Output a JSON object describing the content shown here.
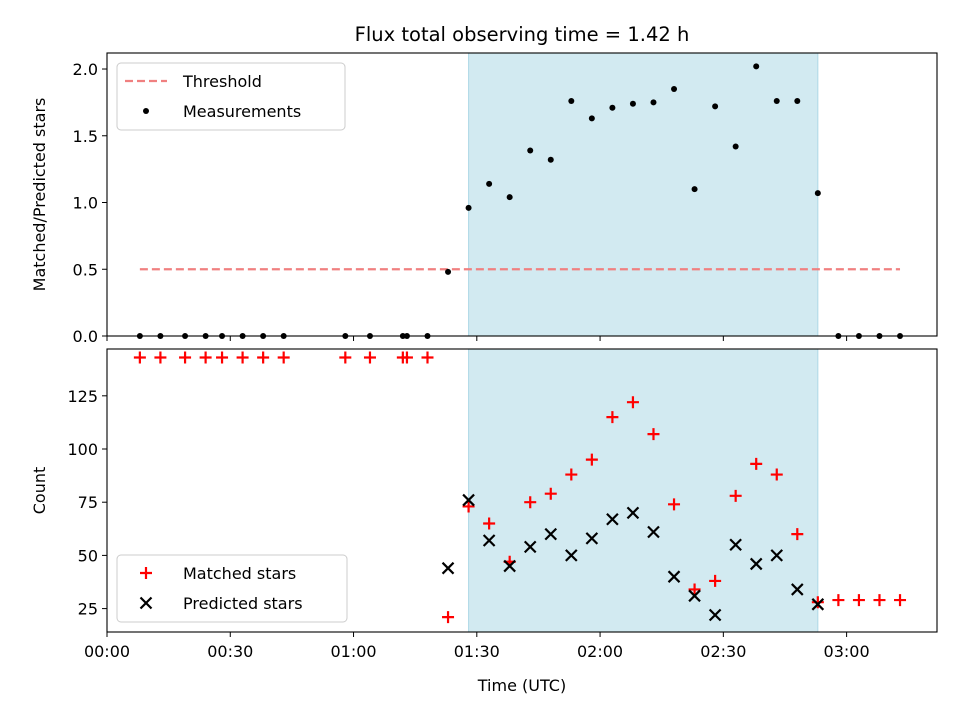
{
  "title": "Flux total observing time = 1.42 h",
  "colors": {
    "threshold": "#f08080",
    "measurement": "#000000",
    "matched": "#ff0000",
    "predicted": "#000000",
    "span": "#add8e6"
  },
  "chart_data": [
    {
      "type": "scatter",
      "title": "Flux total observing time = 1.42 h",
      "xlabel": "",
      "ylabel": "Matched/Predicted stars",
      "xlim": [
        "00:00",
        "03:22"
      ],
      "ylim": [
        0,
        2.12
      ],
      "yticks": [
        "0.0",
        "0.5",
        "1.0",
        "1.5",
        "2.0"
      ],
      "grid": false,
      "legend": "upper left",
      "shaded_span": [
        "01:28",
        "02:53"
      ],
      "series": [
        {
          "name": "Threshold",
          "style": "dashed-line",
          "x": [
            "00:08",
            "03:13"
          ],
          "y": [
            0.5,
            0.5
          ]
        },
        {
          "name": "Measurements",
          "style": "dot",
          "x": [
            "00:08",
            "00:13",
            "00:19",
            "00:24",
            "00:28",
            "00:33",
            "00:38",
            "00:43",
            "00:58",
            "01:04",
            "01:12",
            "01:13",
            "01:18",
            "01:23",
            "01:28",
            "01:33",
            "01:38",
            "01:43",
            "01:48",
            "01:53",
            "01:58",
            "02:03",
            "02:08",
            "02:13",
            "02:18",
            "02:23",
            "02:28",
            "02:33",
            "02:38",
            "02:43",
            "02:48",
            "02:53",
            "02:58",
            "03:03",
            "03:08",
            "03:13"
          ],
          "y": [
            0,
            0,
            0,
            0,
            0,
            0,
            0,
            0,
            0,
            0,
            0,
            0,
            0,
            0.48,
            0.96,
            1.14,
            1.04,
            1.39,
            1.32,
            1.76,
            1.63,
            1.71,
            1.74,
            1.75,
            1.85,
            1.1,
            1.72,
            1.42,
            2.02,
            1.76,
            1.76,
            1.07,
            0,
            0,
            0,
            0
          ]
        }
      ]
    },
    {
      "type": "scatter",
      "title": "",
      "xlabel": "Time (UTC)",
      "ylabel": "Count",
      "xlim": [
        "00:00",
        "03:22"
      ],
      "ylim": [
        14,
        147
      ],
      "xticks": [
        "00:00",
        "00:30",
        "01:00",
        "01:30",
        "02:00",
        "02:30",
        "03:00"
      ],
      "yticks": [
        "25",
        "50",
        "75",
        "100",
        "125"
      ],
      "grid": false,
      "legend": "lower left",
      "shaded_span": [
        "01:28",
        "02:53"
      ],
      "series": [
        {
          "name": "Matched stars",
          "marker": "plus",
          "x": [
            "00:08",
            "00:13",
            "00:19",
            "00:24",
            "00:28",
            "00:33",
            "00:38",
            "00:43",
            "00:58",
            "01:04",
            "01:12",
            "01:13",
            "01:18",
            "01:23",
            "01:28",
            "01:33",
            "01:38",
            "01:43",
            "01:48",
            "01:53",
            "01:58",
            "02:03",
            "02:08",
            "02:13",
            "02:18",
            "02:23",
            "02:28",
            "02:33",
            "02:38",
            "02:43",
            "02:48",
            "02:53",
            "02:58",
            "03:03",
            "03:08",
            "03:13"
          ],
          "y": [
            143,
            143,
            143,
            143,
            143,
            143,
            143,
            143,
            143,
            143,
            143,
            143,
            143,
            21,
            73,
            65,
            47,
            75,
            79,
            88,
            95,
            115,
            122,
            107,
            74,
            34,
            38,
            78,
            93,
            88,
            60,
            28,
            29,
            29,
            29,
            29
          ]
        },
        {
          "name": "Predicted stars",
          "marker": "x",
          "x": [
            "01:23",
            "01:28",
            "01:33",
            "01:38",
            "01:43",
            "01:48",
            "01:53",
            "01:58",
            "02:03",
            "02:08",
            "02:13",
            "02:18",
            "02:23",
            "02:28",
            "02:33",
            "02:38",
            "02:43",
            "02:48",
            "02:53"
          ],
          "y": [
            44,
            76,
            57,
            45,
            54,
            60,
            50,
            58,
            67,
            70,
            61,
            40,
            31,
            22,
            55,
            46,
            50,
            34,
            27
          ]
        }
      ]
    }
  ]
}
